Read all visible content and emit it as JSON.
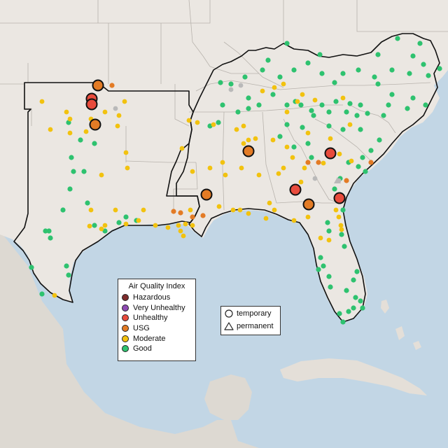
{
  "legend": {
    "title": "Air Quality Index",
    "categories": [
      {
        "key": "hazardous",
        "label": "Hazardous",
        "color": "#7e2d2d"
      },
      {
        "key": "very_unhealthy",
        "label": "Very Unhealthy",
        "color": "#8e4bb3"
      },
      {
        "key": "unhealthy",
        "label": "Unhealthy",
        "color": "#e84b3c"
      },
      {
        "key": "usg",
        "label": "USG",
        "color": "#e37b25"
      },
      {
        "key": "moderate",
        "label": "Moderate",
        "color": "#f2c20f"
      },
      {
        "key": "good",
        "label": "Good",
        "color": "#2ec26f"
      }
    ]
  },
  "monitor_types": {
    "temporary_label": "temporary",
    "permanent_label": "permanent"
  },
  "colors": {
    "ocean": "#c2d6e5",
    "land": "#ebe7e2",
    "land_outside": "#e4dfd8",
    "mexico": "#ddd9d2",
    "border": "#b8b3ad",
    "outline": "#111111",
    "unavailable": "#b9b9b9"
  }
}
